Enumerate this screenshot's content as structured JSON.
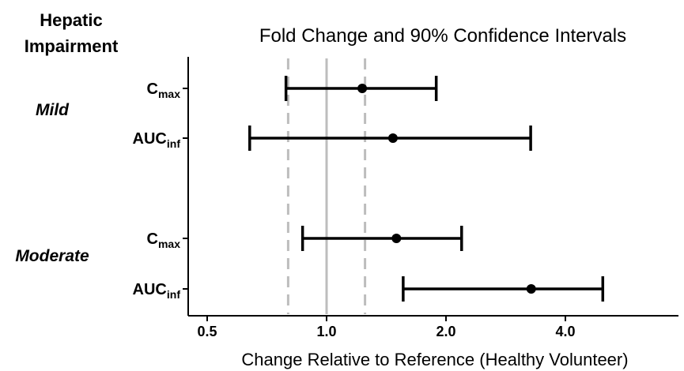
{
  "chart_data": {
    "type": "forest",
    "title": "Fold Change and 90% Confidence Intervals",
    "xlabel": "Change Relative to Reference (Healthy Volunteer)",
    "ylabel": "Hepatic Impairment",
    "x_scale": "log",
    "xlim": [
      0.49,
      5.1
    ],
    "x_ticks": [
      0.5,
      1.0,
      2.0,
      4.0
    ],
    "x_tick_labels": [
      "0.5",
      "1.0",
      "2.0",
      "4.0"
    ],
    "reference_line": 1.0,
    "equivalence_bounds": [
      0.8,
      1.25
    ],
    "groups": [
      {
        "name": "Mild",
        "rows": [
          {
            "parameter": "C",
            "subscript": "max",
            "estimate": 1.23,
            "lower": 0.79,
            "upper": 1.89
          },
          {
            "parameter": "AUC",
            "subscript": "inf",
            "estimate": 1.47,
            "lower": 0.64,
            "upper": 3.27
          }
        ]
      },
      {
        "name": "Moderate",
        "rows": [
          {
            "parameter": "C",
            "subscript": "max",
            "estimate": 1.5,
            "lower": 0.87,
            "upper": 2.19
          },
          {
            "parameter": "AUC",
            "subscript": "inf",
            "estimate": 3.28,
            "lower": 1.56,
            "upper": 4.97
          }
        ]
      }
    ],
    "colors": {
      "ci": "#000000",
      "reference": "#bdbdbd",
      "bounds": "#bdbdbd"
    }
  }
}
